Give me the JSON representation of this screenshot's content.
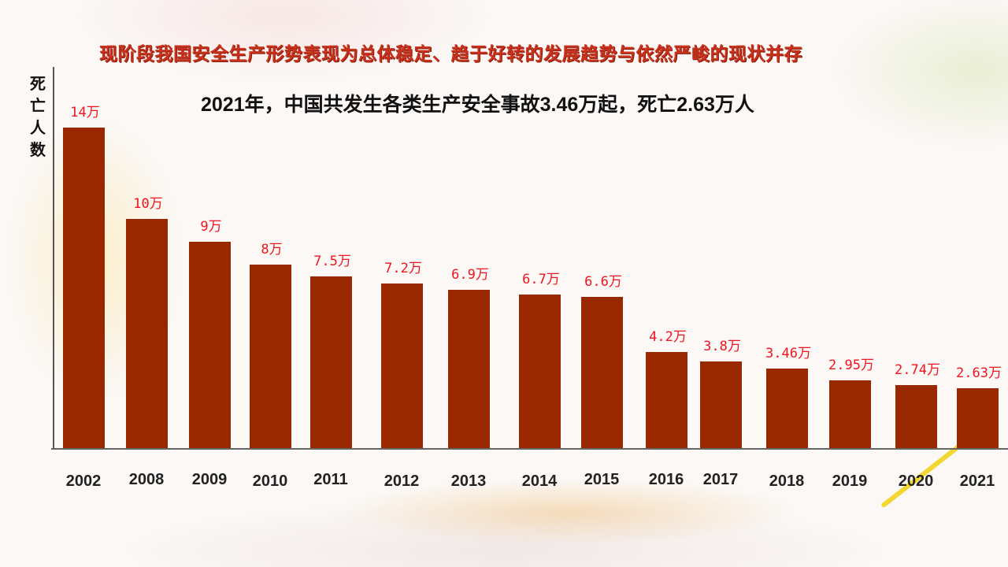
{
  "slide": {
    "headline": "现阶段我国安全生产形势表现为总体稳定、趋于好转的发展趋势与依然严峻的现状并存",
    "subtitle": "2021年，中国共发生各类生产安全事故3.46万起，死亡2.63万人",
    "y_axis_label": "死亡人数"
  },
  "colors": {
    "bar": "#992800",
    "value_label": "#f0141e",
    "headline": "#c8321c"
  },
  "chart_data": {
    "type": "bar",
    "title": "2021年，中国共发生各类生产安全事故3.46万起，死亡2.63万人",
    "xlabel": "",
    "ylabel": "死亡人数",
    "unit": "万",
    "categories": [
      "2002",
      "2008",
      "2009",
      "2010",
      "2011",
      "2012",
      "2013",
      "2014",
      "2015",
      "2016",
      "2017",
      "2018",
      "2019",
      "2020",
      "2021"
    ],
    "values": [
      14,
      10,
      9,
      8,
      7.5,
      7.2,
      6.9,
      6.7,
      6.6,
      4.2,
      3.8,
      3.46,
      2.95,
      2.74,
      2.63
    ],
    "labels": [
      "14万",
      "10万",
      "9万",
      "8万",
      "7.5万",
      "7.2万",
      "6.9万",
      "6.7万",
      "6.6万",
      "4.2万",
      "3.8万",
      "3.46万",
      "2.95万",
      "2.74万",
      "2.63万"
    ],
    "grid": false,
    "legend": null
  }
}
